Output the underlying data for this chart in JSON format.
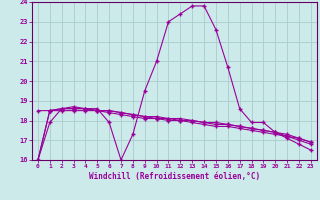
{
  "xlabel": "Windchill (Refroidissement éolien,°C)",
  "background_color": "#cdeaea",
  "grid_color": "#aacccc",
  "line_color": "#990099",
  "spine_color": "#660066",
  "xlim": [
    -0.5,
    23.5
  ],
  "ylim": [
    16,
    24
  ],
  "yticks": [
    16,
    17,
    18,
    19,
    20,
    21,
    22,
    23,
    24
  ],
  "xticks": [
    0,
    1,
    2,
    3,
    4,
    5,
    6,
    7,
    8,
    9,
    10,
    11,
    12,
    13,
    14,
    15,
    16,
    17,
    18,
    19,
    20,
    21,
    22,
    23
  ],
  "series": [
    [
      16.0,
      17.9,
      18.6,
      18.7,
      18.6,
      18.6,
      17.9,
      16.0,
      17.3,
      19.5,
      21.0,
      23.0,
      23.4,
      23.8,
      23.8,
      22.6,
      20.7,
      18.6,
      17.9,
      17.9,
      17.4,
      17.1,
      16.8,
      16.5
    ],
    [
      18.5,
      18.5,
      18.5,
      18.5,
      18.5,
      18.5,
      18.4,
      18.3,
      18.2,
      18.1,
      18.1,
      18.0,
      18.0,
      17.9,
      17.8,
      17.7,
      17.7,
      17.6,
      17.5,
      17.4,
      17.3,
      17.2,
      17.0,
      16.8
    ],
    [
      16.0,
      18.5,
      18.6,
      18.6,
      18.6,
      18.5,
      18.5,
      18.4,
      18.3,
      18.2,
      18.1,
      18.1,
      18.0,
      18.0,
      17.9,
      17.8,
      17.8,
      17.7,
      17.6,
      17.5,
      17.4,
      17.2,
      17.1,
      16.9
    ],
    [
      16.0,
      18.5,
      18.6,
      18.6,
      18.6,
      18.5,
      18.5,
      18.4,
      18.3,
      18.2,
      18.2,
      18.1,
      18.1,
      18.0,
      17.9,
      17.9,
      17.8,
      17.7,
      17.6,
      17.5,
      17.4,
      17.3,
      17.1,
      16.9
    ]
  ]
}
